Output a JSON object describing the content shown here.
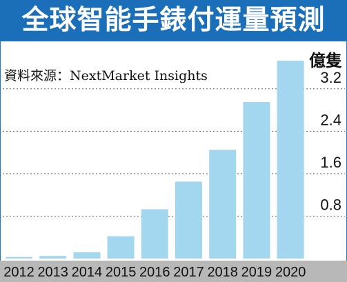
{
  "title": "全球智能手錶付運量預測",
  "source": "資料來源：NextMarket Insights",
  "unit": "億隻",
  "colors": {
    "header": "#1a6fb8",
    "bar": "#a3d6ef",
    "axis_band": "#b8b8b8",
    "grid": "#666666"
  },
  "chart_data": {
    "type": "bar",
    "title": "全球智能手錶付運量預測",
    "xlabel": "",
    "ylabel": "億隻",
    "categories": [
      "2012",
      "2013",
      "2014",
      "2015",
      "2016",
      "2017",
      "2018",
      "2019",
      "2020"
    ],
    "values": [
      0.03,
      0.05,
      0.12,
      0.42,
      0.93,
      1.45,
      2.05,
      2.95,
      3.73
    ],
    "yticks": [
      "0.8",
      "1.6",
      "2.4",
      "3.2"
    ],
    "ytick_values": [
      0.8,
      1.6,
      2.4,
      3.2
    ],
    "ylim": [
      0,
      3.73
    ],
    "grid": true,
    "gridline_style": "dotted"
  }
}
